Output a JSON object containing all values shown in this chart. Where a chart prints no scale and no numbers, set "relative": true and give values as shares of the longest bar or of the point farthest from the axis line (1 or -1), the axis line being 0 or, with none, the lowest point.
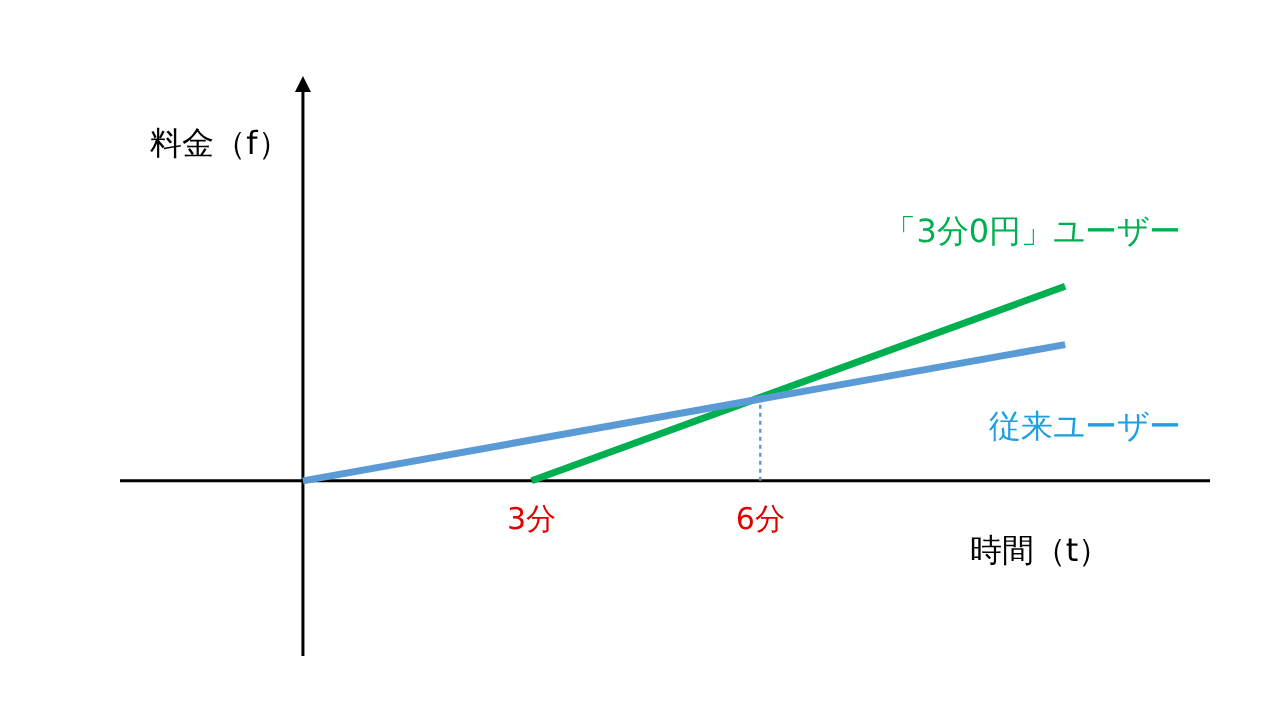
{
  "chart_data": {
    "type": "line",
    "relative": true,
    "xlabel": "時間（t）",
    "ylabel": "料金（f）",
    "xlim": [
      -2.4,
      11.9
    ],
    "xticks": [
      {
        "value": 3,
        "label": "3分"
      },
      {
        "value": 6,
        "label": "6分"
      }
    ],
    "series": [
      {
        "name": "「3分0円」ユーザー",
        "color": "#00b050",
        "x": [
          3,
          10
        ],
        "values": [
          0,
          1.0
        ]
      },
      {
        "name": "従来ユーザー",
        "color": "#5b9bd5",
        "x": [
          0,
          10
        ],
        "values": [
          0,
          0.7
        ]
      }
    ],
    "ref_lines": [
      {
        "axis": "x",
        "value": 6,
        "color": "#5b9bd5",
        "line_style": "dotted"
      }
    ]
  }
}
